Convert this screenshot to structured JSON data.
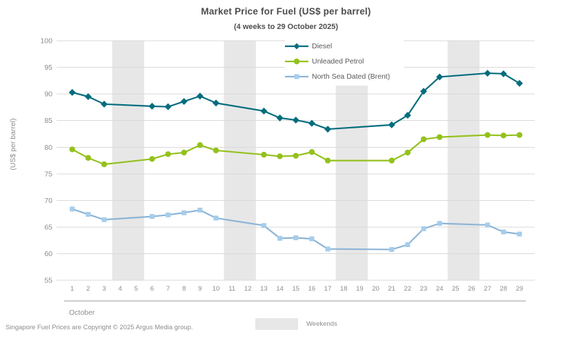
{
  "header": {
    "title": "Market Price for Fuel (US$ per barrel)",
    "subtitle": "(4 weeks to 29 October 2025)"
  },
  "chart_data": {
    "type": "line",
    "title": "Market Price for Fuel (US$ per barrel)",
    "subtitle": "(4 weeks to 29 October 2025)",
    "ylabel": "(US$ per barrel)",
    "xlabel_month": "October",
    "ylim": [
      55,
      100
    ],
    "ytick_step": 5,
    "grid": "horizontal",
    "grid_color": "#d9d9d9",
    "axis_text_color": "#8c8c8c",
    "legend_position": "top-center-inside",
    "x_days": [
      1,
      2,
      3,
      4,
      5,
      6,
      7,
      8,
      9,
      10,
      11,
      12,
      13,
      14,
      15,
      16,
      17,
      18,
      19,
      20,
      21,
      22,
      23,
      24,
      25,
      26,
      27,
      28,
      29
    ],
    "weekend_bands": [
      [
        4,
        5
      ],
      [
        11,
        12
      ],
      [
        18,
        19
      ],
      [
        25,
        26
      ]
    ],
    "weekend_color": "#e7e7e7",
    "series": [
      {
        "name": "Diesel",
        "color": "#036d7e",
        "marker_color": "#036d7e",
        "marker": "diamond",
        "points": [
          [
            1,
            90.3
          ],
          [
            2,
            89.5
          ],
          [
            3,
            88.1
          ],
          [
            6,
            87.7
          ],
          [
            7,
            87.6
          ],
          [
            8,
            88.6
          ],
          [
            9,
            89.6
          ],
          [
            10,
            88.3
          ],
          [
            13,
            86.8
          ],
          [
            14,
            85.5
          ],
          [
            15,
            85.1
          ],
          [
            16,
            84.5
          ],
          [
            17,
            83.4
          ],
          [
            21,
            84.2
          ],
          [
            22,
            86.0
          ],
          [
            23,
            90.5
          ],
          [
            24,
            93.2
          ],
          [
            27,
            93.9
          ],
          [
            28,
            93.8
          ],
          [
            29,
            92.0
          ]
        ]
      },
      {
        "name": "Unleaded Petrol",
        "color": "#94c11c",
        "marker_color": "#94c11c",
        "marker": "circle",
        "points": [
          [
            1,
            79.6
          ],
          [
            2,
            78.0
          ],
          [
            3,
            76.8
          ],
          [
            6,
            77.8
          ],
          [
            7,
            78.7
          ],
          [
            8,
            79.0
          ],
          [
            9,
            80.4
          ],
          [
            10,
            79.4
          ],
          [
            13,
            78.6
          ],
          [
            14,
            78.3
          ],
          [
            15,
            78.4
          ],
          [
            16,
            79.1
          ],
          [
            17,
            77.5
          ],
          [
            21,
            77.5
          ],
          [
            22,
            79.0
          ],
          [
            23,
            81.5
          ],
          [
            24,
            81.9
          ],
          [
            27,
            82.3
          ],
          [
            28,
            82.2
          ],
          [
            29,
            82.3
          ]
        ]
      },
      {
        "name": "North Sea Dated (Brent)",
        "color": "#8cb4d6",
        "marker_color": "#a5cdeb",
        "marker": "square",
        "points": [
          [
            1,
            68.4
          ],
          [
            2,
            67.4
          ],
          [
            3,
            66.4
          ],
          [
            6,
            67.0
          ],
          [
            7,
            67.3
          ],
          [
            8,
            67.7
          ],
          [
            9,
            68.2
          ],
          [
            10,
            66.7
          ],
          [
            13,
            65.3
          ],
          [
            14,
            62.9
          ],
          [
            15,
            63.0
          ],
          [
            16,
            62.8
          ],
          [
            17,
            60.9
          ],
          [
            21,
            60.8
          ],
          [
            22,
            61.7
          ],
          [
            23,
            64.7
          ],
          [
            24,
            65.7
          ],
          [
            27,
            65.4
          ],
          [
            28,
            64.1
          ],
          [
            29,
            63.7
          ]
        ]
      }
    ]
  },
  "weekend_key": {
    "label": "Weekends",
    "color": "#e7e7e7"
  },
  "footer": {
    "text": "Singapore Fuel Prices are Copyright © 2025 Argus Media group."
  }
}
